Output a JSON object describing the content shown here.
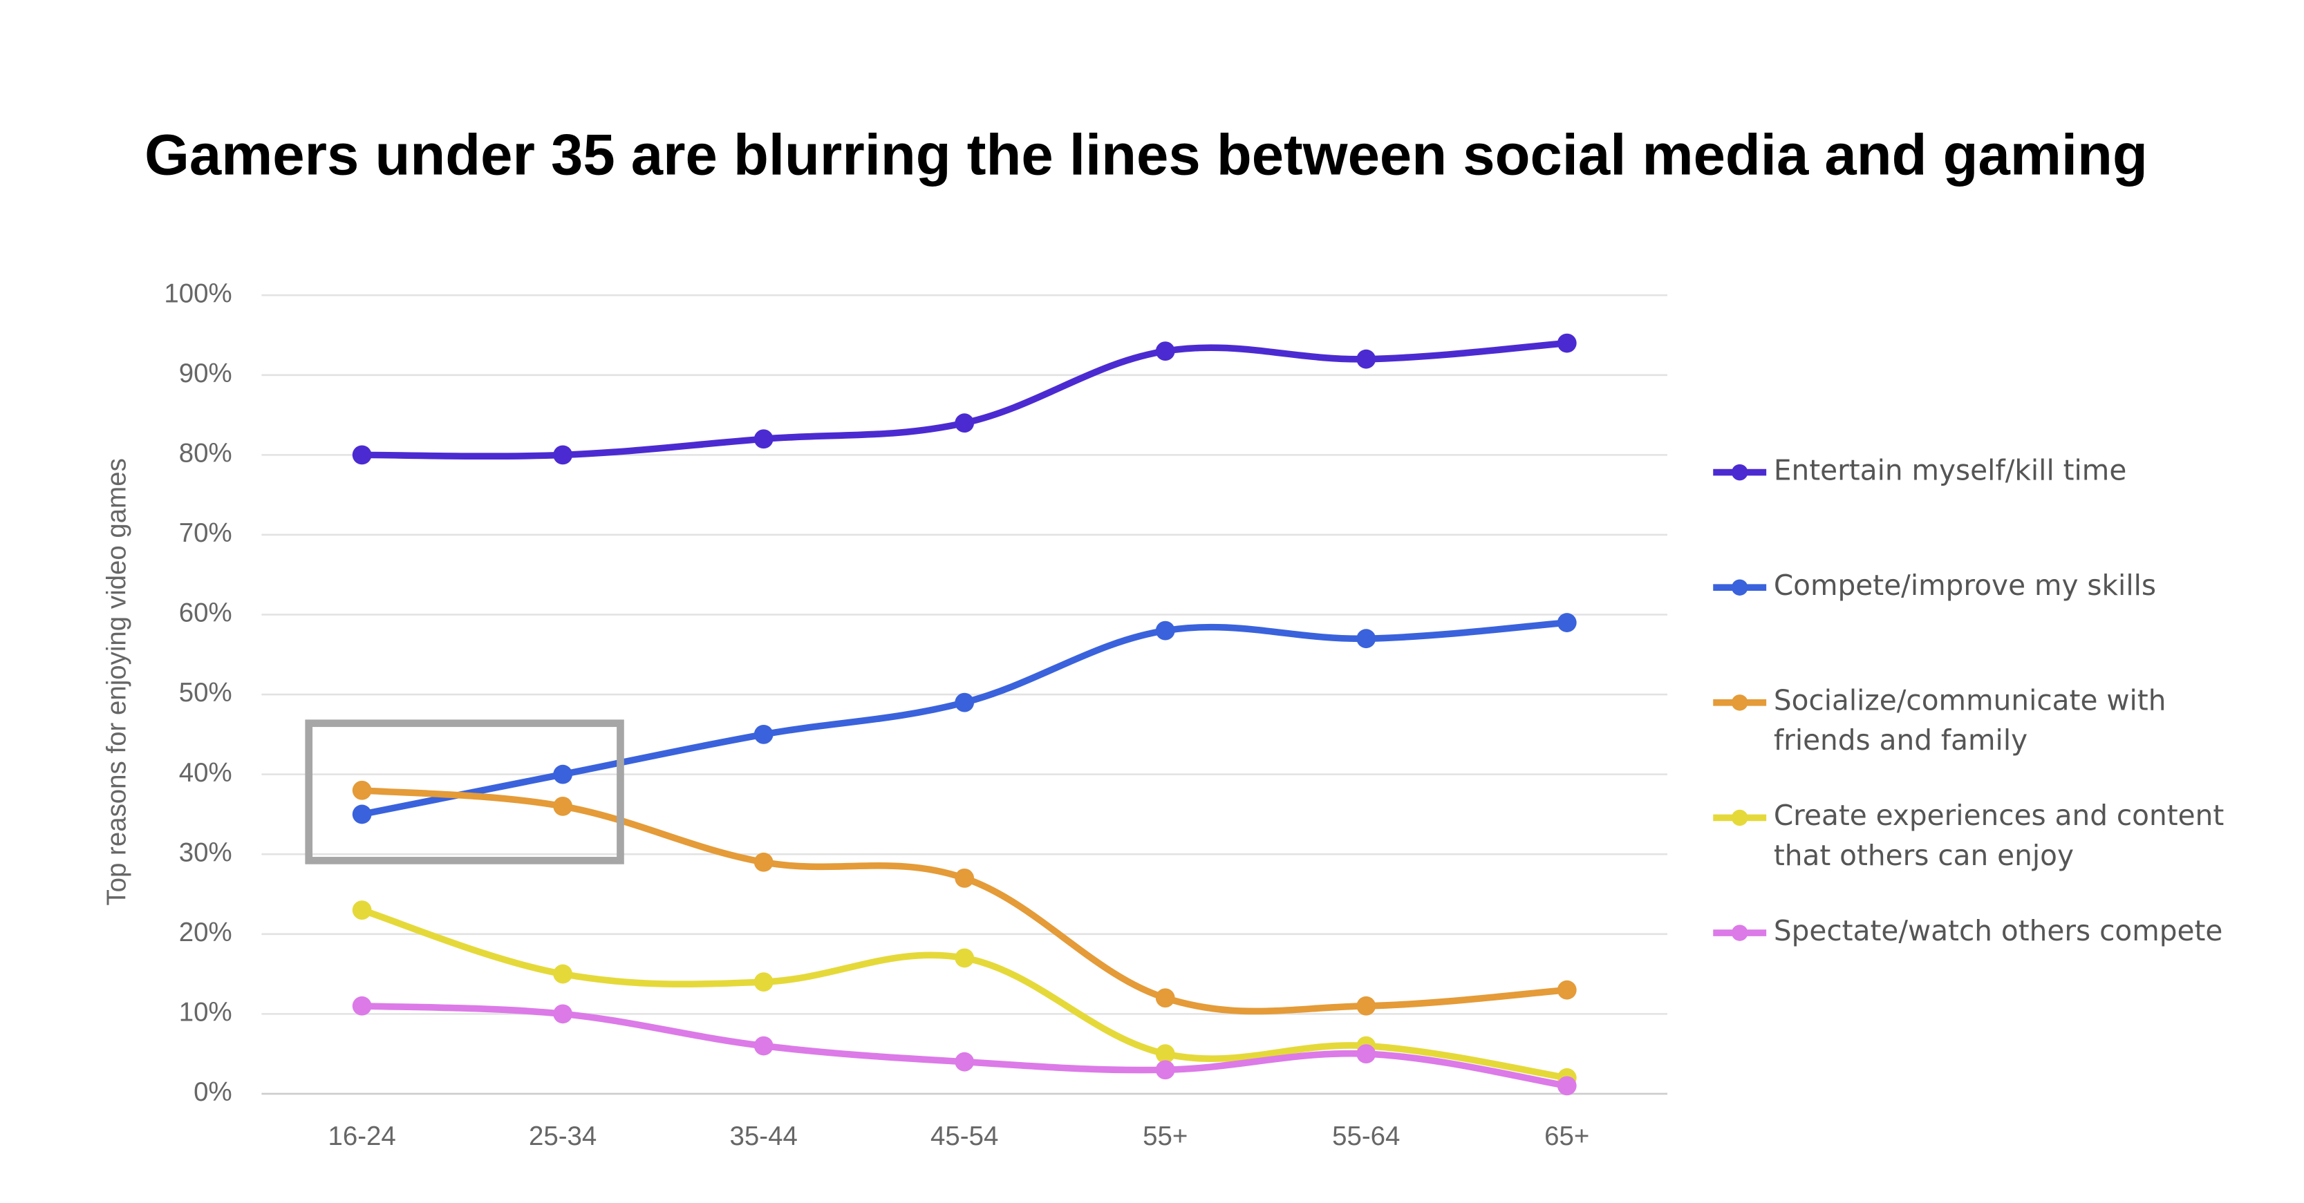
{
  "chart_data": {
    "type": "line",
    "title": "Gamers under 35 are blurring the lines between social media and gaming",
    "y_label": "Top reasons for enjoying video games",
    "categories": [
      "16-24",
      "25-34",
      "35-44",
      "45-54",
      "55+",
      "55-64",
      "65+"
    ],
    "series": [
      {
        "name": "Entertain myself/kill time",
        "color": "#4b2bd1",
        "values": [
          80,
          80,
          82,
          84,
          93,
          92,
          94
        ]
      },
      {
        "name": "Compete/improve my skills",
        "color": "#3a62dc",
        "values": [
          35,
          40,
          45,
          49,
          58,
          57,
          59
        ]
      },
      {
        "name": "Socialize/communicate with friends and family",
        "color": "#e49b38",
        "values": [
          38,
          36,
          29,
          27,
          12,
          11,
          13
        ]
      },
      {
        "name": "Create experiences and content that others can enjoy",
        "color": "#e5d93a",
        "values": [
          23,
          15,
          14,
          17,
          5,
          6,
          2
        ]
      },
      {
        "name": "Spectate/watch others compete",
        "color": "#dc7ae8",
        "values": [
          11,
          10,
          6,
          4,
          3,
          5,
          1
        ]
      }
    ],
    "ylim": [
      0,
      100
    ],
    "yticks": [
      {
        "value": 0,
        "label": "0%"
      },
      {
        "value": 10,
        "label": "10%"
      },
      {
        "value": 20,
        "label": "20%"
      },
      {
        "value": 30,
        "label": "30%"
      },
      {
        "value": 40,
        "label": "40%"
      },
      {
        "value": 50,
        "label": "50%"
      },
      {
        "value": 60,
        "label": "60%"
      },
      {
        "value": 70,
        "label": "70%"
      },
      {
        "value": 80,
        "label": "80%"
      },
      {
        "value": 90,
        "label": "90%"
      },
      {
        "value": 100,
        "label": "100%"
      }
    ],
    "grid": true,
    "legend": "right"
  }
}
